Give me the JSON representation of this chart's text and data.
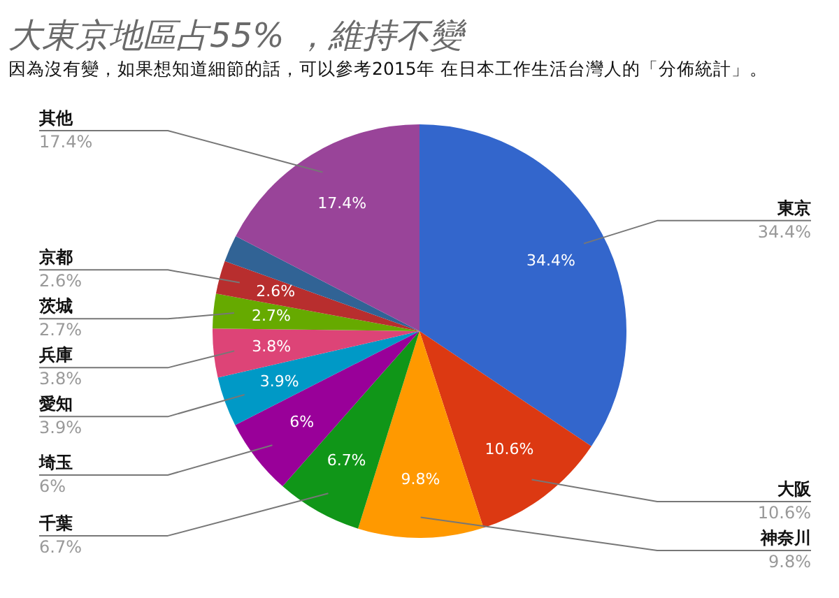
{
  "chart_data": {
    "type": "pie",
    "title": "大東京地區占55% ，維持不變",
    "subtitle": "因為沒有變，如果想知道細節的話，可以參考2015年 在日本工作生活台灣人的「分佈統計」。",
    "categories": [
      "東京",
      "大阪",
      "神奈川",
      "千葉",
      "埼玉",
      "愛知",
      "兵庫",
      "茨城",
      "京都",
      null,
      "其他"
    ],
    "values": [
      34.4,
      10.6,
      9.8,
      6.7,
      6,
      3.9,
      3.8,
      2.7,
      2.6,
      2.1,
      17.4
    ],
    "colors": [
      "#3366cc",
      "#dc3912",
      "#ff9900",
      "#109618",
      "#990099",
      "#0099c6",
      "#dd4477",
      "#66aa00",
      "#b82e2e",
      "#316395",
      "#994499"
    ],
    "value_labels": [
      "34.4%",
      "10.6%",
      "9.8%",
      "6.7%",
      "6%",
      "3.9%",
      "3.8%",
      "2.7%",
      "2.6%",
      null,
      "17.4%"
    ]
  }
}
